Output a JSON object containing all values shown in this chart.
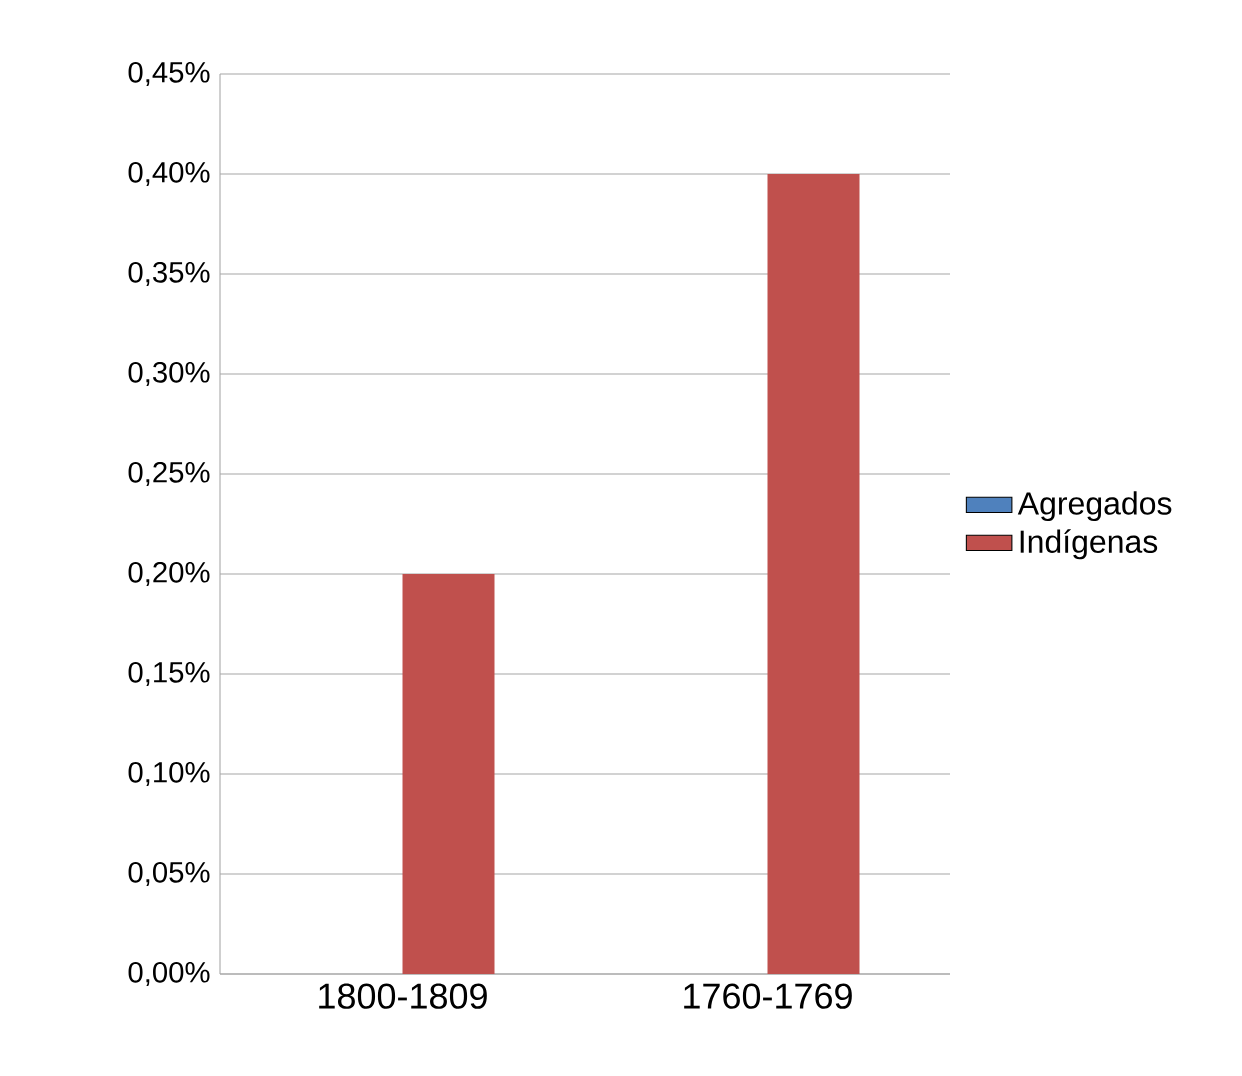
{
  "chart_data": {
    "type": "bar",
    "categories": [
      "1800-1809",
      "1760-1769"
    ],
    "series": [
      {
        "name": "Agregados",
        "color": "#4f81bd",
        "values": [
          0,
          0
        ]
      },
      {
        "name": "Indígenas",
        "color": "#c0504d",
        "values": [
          0.2,
          0.4
        ]
      }
    ],
    "ylim": [
      0,
      0.45
    ],
    "yticks": [
      {
        "value": 0,
        "label": "0,00%"
      },
      {
        "value": 0.05,
        "label": "0,05%"
      },
      {
        "value": 0.1,
        "label": "0,10%"
      },
      {
        "value": 0.15,
        "label": "0,15%"
      },
      {
        "value": 0.2,
        "label": "0,20%"
      },
      {
        "value": 0.25,
        "label": "0,25%"
      },
      {
        "value": 0.3,
        "label": "0,30%"
      },
      {
        "value": 0.35,
        "label": "0,35%"
      },
      {
        "value": 0.4,
        "label": "0,40%"
      },
      {
        "value": 0.45,
        "label": "0,45%"
      }
    ],
    "grid": "y",
    "legend": "right"
  }
}
